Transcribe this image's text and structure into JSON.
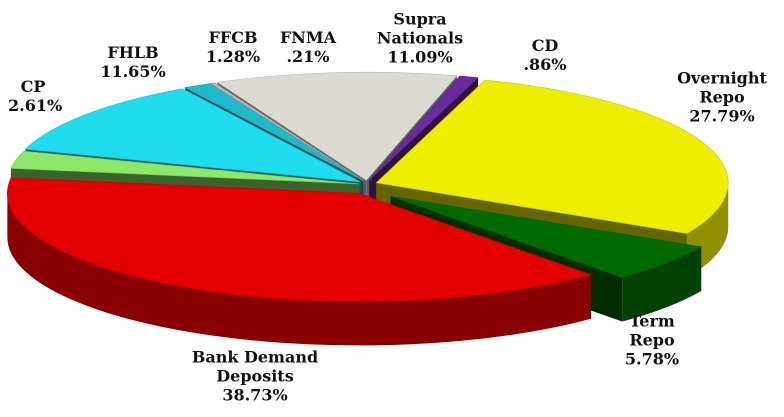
{
  "chart_data": {
    "type": "pie",
    "categories": [
      "Overnight Repo",
      "Term Repo",
      "Bank Demand Deposits",
      "CP",
      "FHLB",
      "FFCB",
      "FNMA",
      "Supra Nationals",
      "CD"
    ],
    "values": [
      27.79,
      5.78,
      38.73,
      2.61,
      11.65,
      1.28,
      0.21,
      11.09,
      0.86
    ],
    "value_labels": [
      "27.79%",
      "5.78%",
      "38.73%",
      "2.61%",
      "11.65%",
      "1.28%",
      ".21%",
      "11.09%",
      ".86%"
    ],
    "colors": [
      "#eeee00",
      "#006a00",
      "#e40000",
      "#8de86a",
      "#1fdcee",
      "#1fb9cc",
      "#b8b8b8",
      "#dcdad2",
      "#6a2aa0"
    ]
  }
}
